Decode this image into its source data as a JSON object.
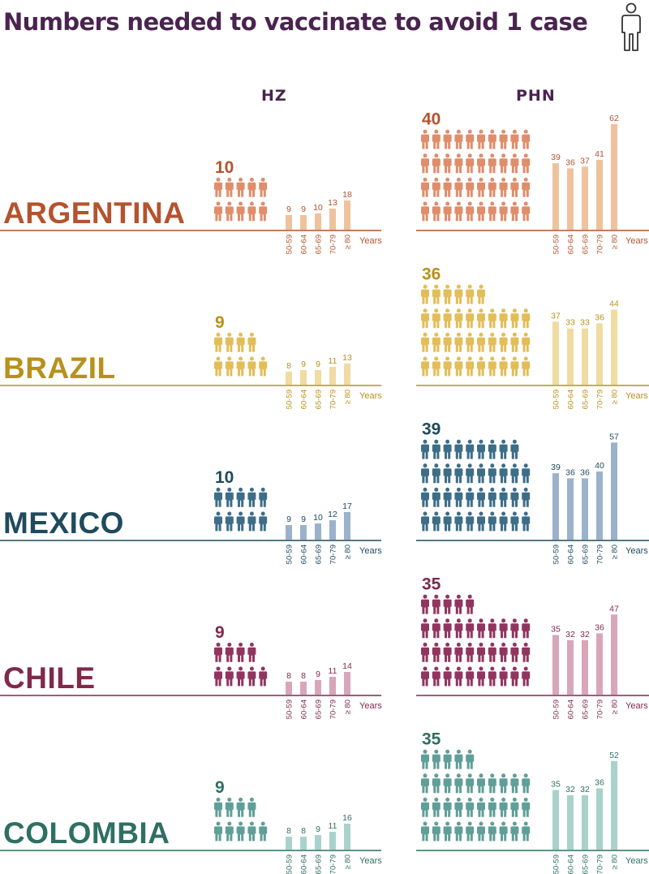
{
  "title": "Numbers needed to vaccinate to avoid 1 case",
  "icons": {
    "title_icon": "person-outline-icon",
    "people_icon": "person-icon"
  },
  "columns": {
    "hz": "HZ",
    "phn": "PHN"
  },
  "chart_data": {
    "type": "bar",
    "title": "Numbers needed to vaccinate to avoid 1 case",
    "panels": [
      "HZ",
      "PHN"
    ],
    "age_groups": [
      "50-59",
      "60-64",
      "65-69",
      "70-79",
      "≥ 80"
    ],
    "age_axis_label": "Years",
    "countries": [
      {
        "name": "ARGENTINA",
        "colors": {
          "text": "#b4532e",
          "icon": "#e08d6b",
          "bar": "#efc29d",
          "line": "#b4532e"
        },
        "hz": {
          "overall": 10,
          "values": [
            9,
            9,
            10,
            13,
            18
          ]
        },
        "phn": {
          "overall": 40,
          "values": [
            39,
            36,
            37,
            41,
            62
          ]
        }
      },
      {
        "name": "BRAZIL",
        "colors": {
          "text": "#b8901c",
          "icon": "#e3bd58",
          "bar": "#f0dba2",
          "line": "#b8901c"
        },
        "hz": {
          "overall": 9,
          "values": [
            8,
            9,
            9,
            11,
            13
          ]
        },
        "phn": {
          "overall": 36,
          "values": [
            37,
            33,
            33,
            36,
            44
          ]
        }
      },
      {
        "name": "MEXICO",
        "colors": {
          "text": "#1f4b5c",
          "icon": "#3e6d88",
          "bar": "#9cb2cb",
          "line": "#1f4b5c"
        },
        "hz": {
          "overall": 10,
          "values": [
            9,
            9,
            10,
            12,
            17
          ]
        },
        "phn": {
          "overall": 39,
          "values": [
            39,
            36,
            36,
            40,
            57
          ]
        }
      },
      {
        "name": "CHILE",
        "colors": {
          "text": "#7e2a4c",
          "icon": "#913560",
          "bar": "#d8a6b8",
          "line": "#7e2a4c"
        },
        "hz": {
          "overall": 9,
          "values": [
            8,
            8,
            9,
            11,
            14
          ]
        },
        "phn": {
          "overall": 35,
          "values": [
            35,
            32,
            32,
            36,
            47
          ]
        }
      },
      {
        "name": "COLOMBIA",
        "colors": {
          "text": "#2f6f63",
          "icon": "#5f9f97",
          "bar": "#a9d2cc",
          "line": "#2f6f63"
        },
        "hz": {
          "overall": 9,
          "values": [
            8,
            8,
            9,
            11,
            16
          ]
        },
        "phn": {
          "overall": 35,
          "values": [
            35,
            32,
            32,
            36,
            52
          ]
        }
      }
    ]
  }
}
